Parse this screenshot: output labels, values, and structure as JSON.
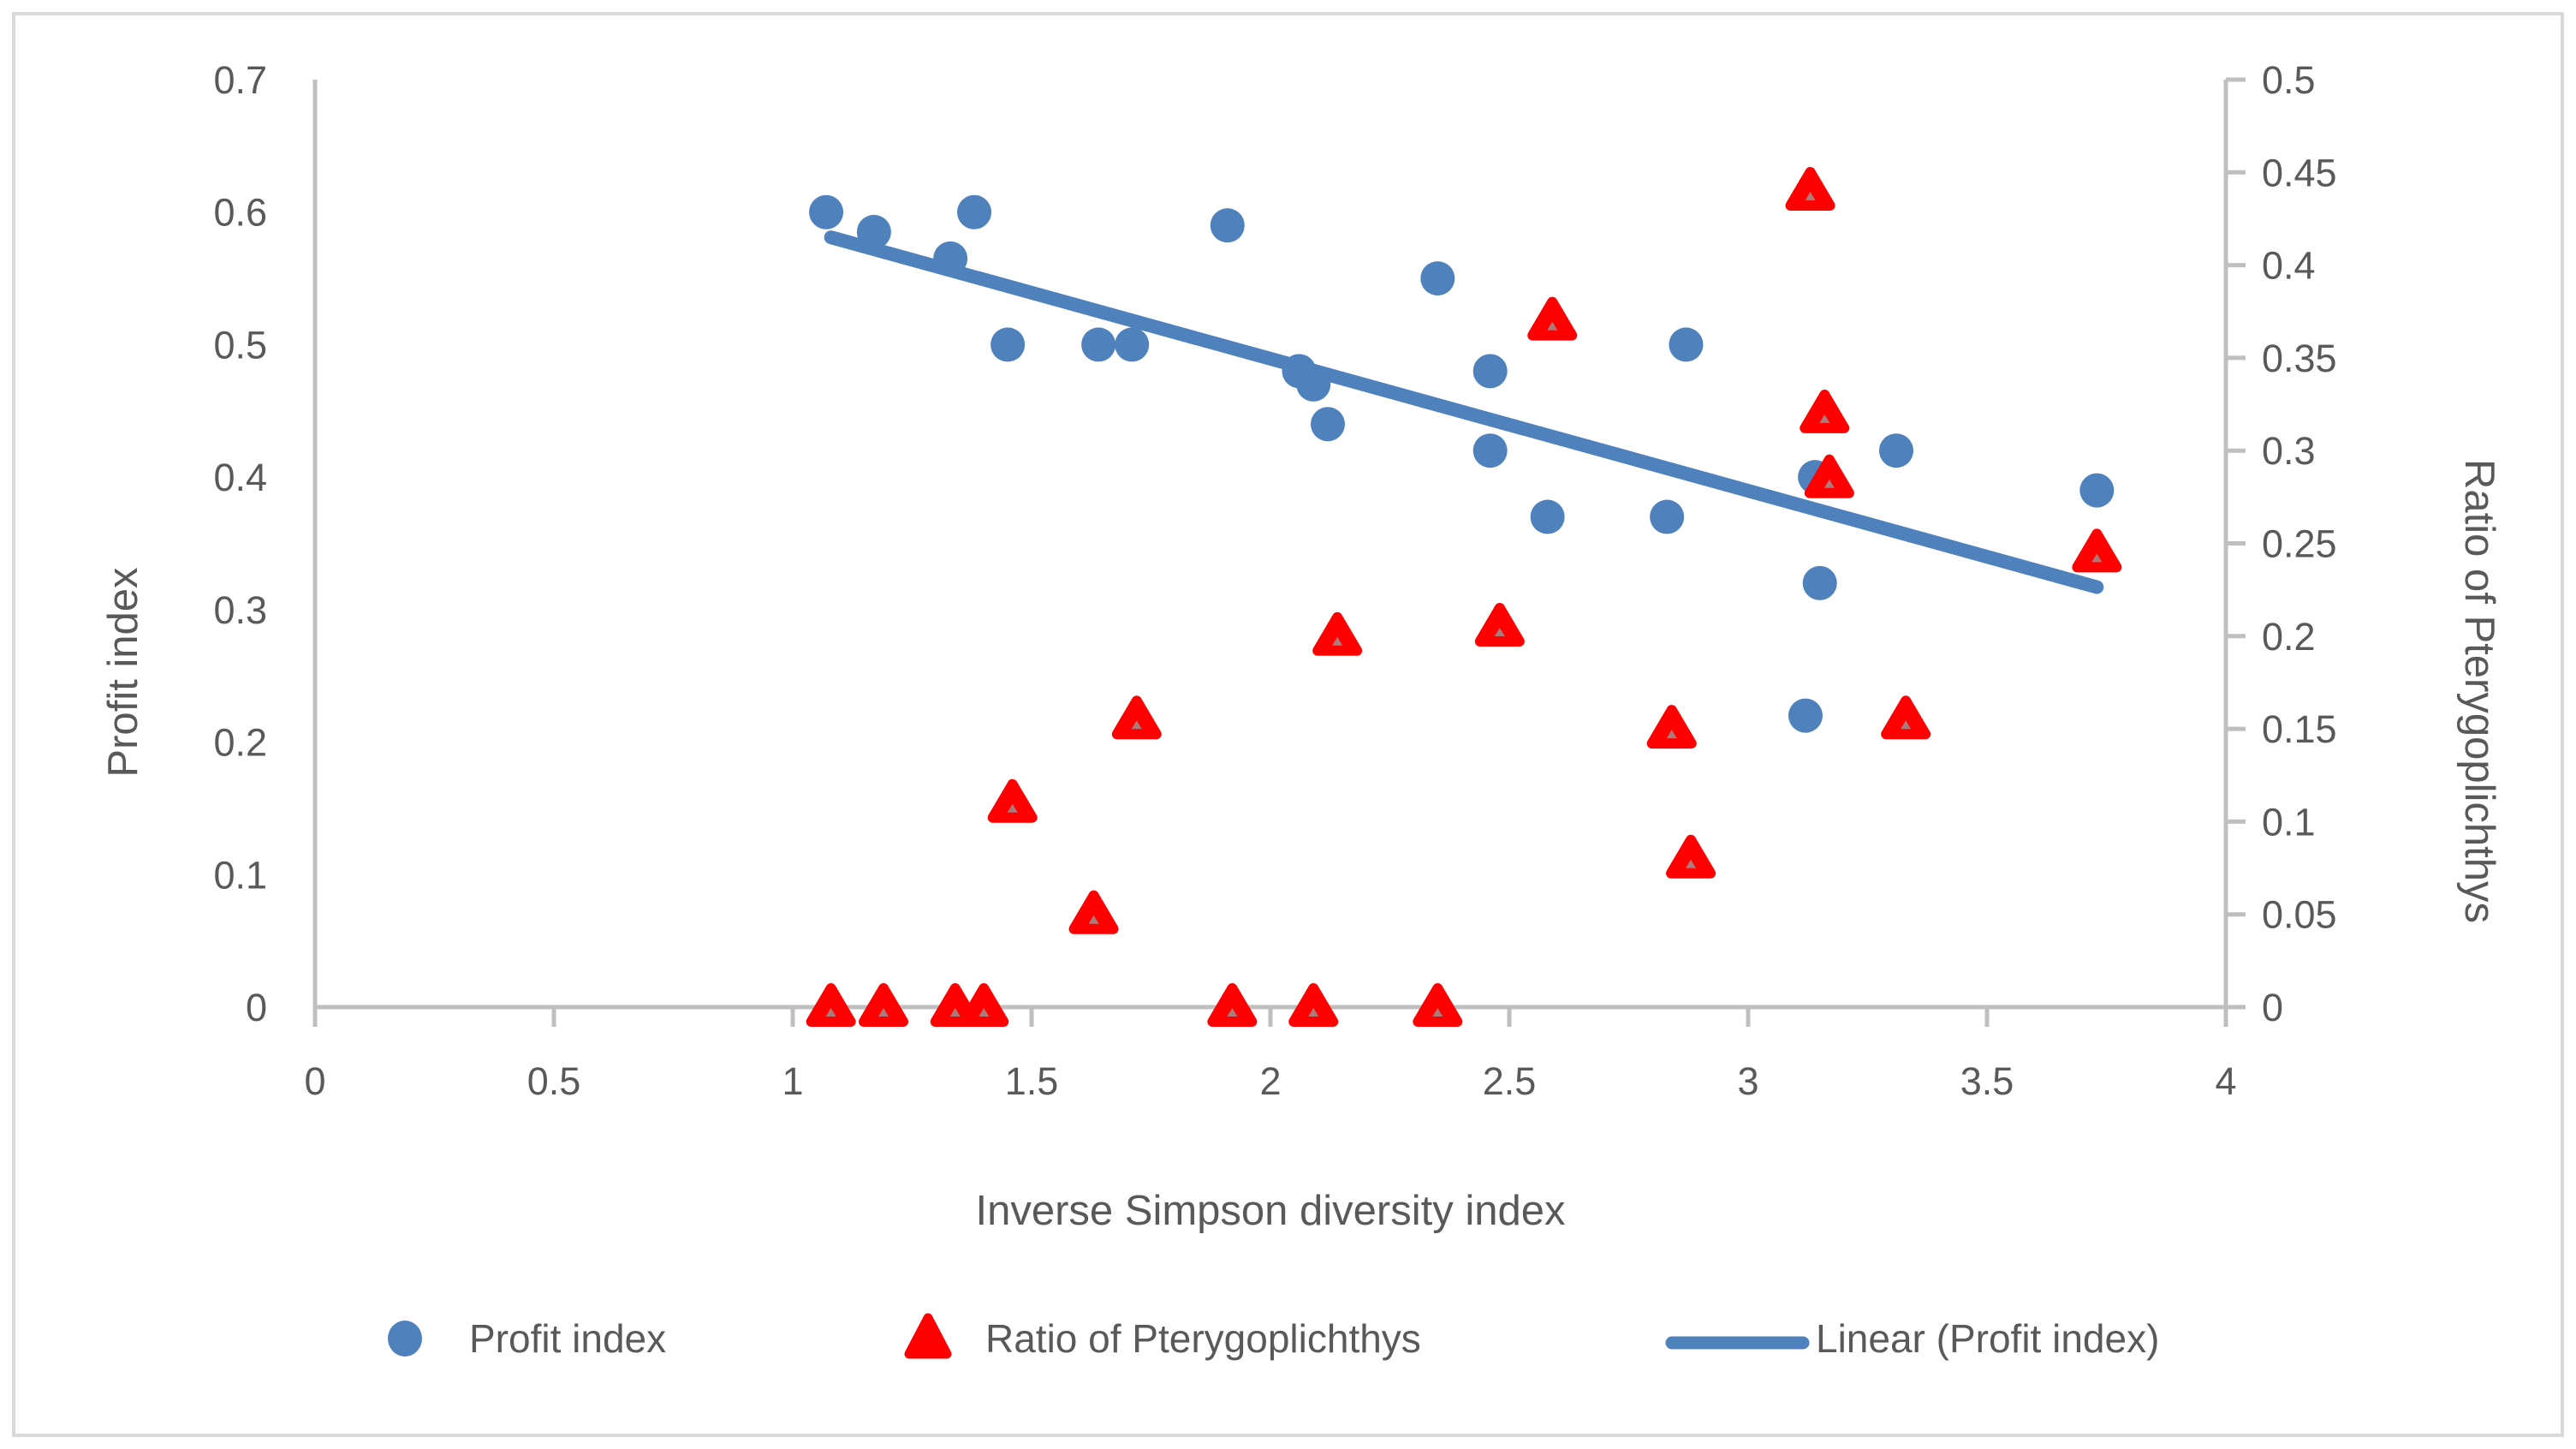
{
  "chart_data": {
    "type": "scatter",
    "title": "",
    "xlabel": "Inverse Simpson diversity index",
    "ylabel_left": "Profit index",
    "ylabel_right": "Ratio of Pterygoplichthys",
    "xlim": [
      0,
      4
    ],
    "ylim_left": [
      0,
      0.7
    ],
    "ylim_right": [
      0,
      0.5
    ],
    "grid": false,
    "x_ticks": {
      "values": [
        0,
        0.5,
        1,
        1.5,
        2,
        2.5,
        3,
        3.5,
        4
      ],
      "labels": [
        "0",
        "0.5",
        "1",
        "1.5",
        "2",
        "2.5",
        "3",
        "3.5",
        "4"
      ]
    },
    "y_ticks_left": {
      "values": [
        0,
        0.1,
        0.2,
        0.3,
        0.4,
        0.5,
        0.6,
        0.7
      ],
      "labels": [
        "0",
        "0.1",
        "0.2",
        "0.3",
        "0.4",
        "0.5",
        "0.6",
        "0.7"
      ]
    },
    "y_ticks_right": {
      "values": [
        0,
        0.05,
        0.1,
        0.15,
        0.2,
        0.25,
        0.3,
        0.35,
        0.4,
        0.45,
        0.5
      ],
      "labels": [
        "0",
        "0.05",
        "0.1",
        "0.15",
        "0.2",
        "0.25",
        "0.3",
        "0.35",
        "0.4",
        "0.45",
        "0.5"
      ]
    },
    "series": [
      {
        "name": "Profit index",
        "marker": "circle",
        "axis": "left",
        "color": "#4F81BD",
        "points": [
          [
            1.07,
            0.6
          ],
          [
            1.17,
            0.585
          ],
          [
            1.33,
            0.565
          ],
          [
            1.38,
            0.6
          ],
          [
            1.45,
            0.5
          ],
          [
            1.64,
            0.5
          ],
          [
            1.71,
            0.5
          ],
          [
            1.91,
            0.59
          ],
          [
            2.06,
            0.48
          ],
          [
            2.09,
            0.47
          ],
          [
            2.12,
            0.44
          ],
          [
            2.35,
            0.55
          ],
          [
            2.46,
            0.48
          ],
          [
            2.46,
            0.42
          ],
          [
            2.58,
            0.37
          ],
          [
            2.83,
            0.37
          ],
          [
            2.87,
            0.5
          ],
          [
            3.12,
            0.22
          ],
          [
            3.14,
            0.4
          ],
          [
            3.15,
            0.32
          ],
          [
            3.31,
            0.42
          ],
          [
            3.73,
            0.39
          ]
        ]
      },
      {
        "name": "Ratio of Pterygoplichthys",
        "marker": "triangle",
        "axis": "right",
        "color": "#FF0000",
        "points": [
          [
            1.08,
            0
          ],
          [
            1.19,
            0
          ],
          [
            1.34,
            0
          ],
          [
            1.4,
            0
          ],
          [
            1.46,
            0.11
          ],
          [
            1.63,
            0.05
          ],
          [
            1.72,
            0.155
          ],
          [
            1.92,
            0
          ],
          [
            2.09,
            0
          ],
          [
            2.14,
            0.2
          ],
          [
            2.35,
            0
          ],
          [
            2.48,
            0.205
          ],
          [
            2.59,
            0.37
          ],
          [
            2.84,
            0.15
          ],
          [
            2.88,
            0.08
          ],
          [
            3.13,
            0.44
          ],
          [
            3.16,
            0.32
          ],
          [
            3.17,
            0.285
          ],
          [
            3.33,
            0.155
          ],
          [
            3.73,
            0.245
          ]
        ]
      },
      {
        "name": "Linear (Profit index)",
        "marker": "line",
        "axis": "left",
        "color": "#4F81BD",
        "points": [
          [
            1.08,
            0.581
          ],
          [
            3.73,
            0.317
          ]
        ]
      }
    ],
    "legend": {
      "position": "bottom",
      "items": [
        "Profit index",
        "Ratio of Pterygoplichthys",
        "Linear (Profit index)"
      ]
    },
    "colors": {
      "blue": "#4F81BD",
      "red": "#FF0000",
      "axis_line": "#BFBFBF",
      "text": "#595959",
      "border": "#D9D9D9",
      "background": "#FFFFFF"
    }
  }
}
